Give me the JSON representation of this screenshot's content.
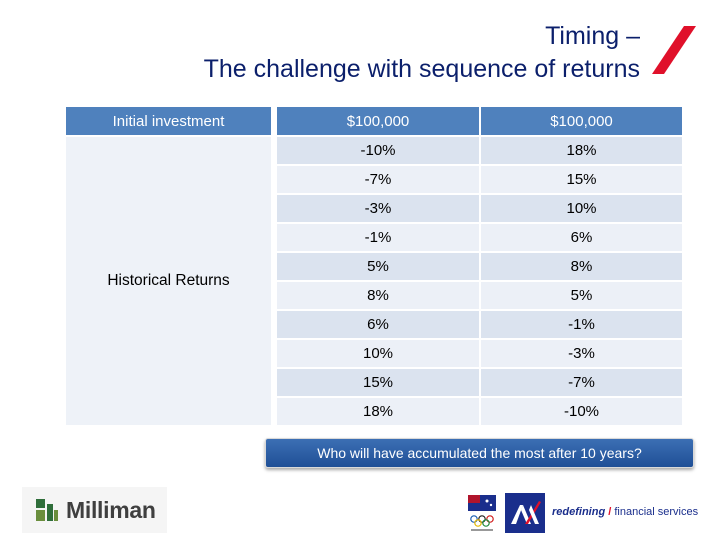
{
  "title": {
    "line1": "Timing –",
    "line2": "The challenge with sequence of returns"
  },
  "table": {
    "header_label": "Initial investment",
    "amounts": [
      "$100,000",
      "$100,000"
    ],
    "side_label": "Historical Returns",
    "rows": [
      [
        "-10%",
        "18%"
      ],
      [
        "-7%",
        "15%"
      ],
      [
        "-3%",
        "10%"
      ],
      [
        "-1%",
        "6%"
      ],
      [
        "5%",
        "8%"
      ],
      [
        "8%",
        "5%"
      ],
      [
        "6%",
        "-1%"
      ],
      [
        "10%",
        "-3%"
      ],
      [
        "15%",
        "-7%"
      ],
      [
        "18%",
        "-10%"
      ]
    ]
  },
  "callout": "Who will have accumulated the most after 10 years?",
  "footer": {
    "brand": "Milliman",
    "tagline_bold": "redefining",
    "tagline_slash": "/",
    "tagline_rest": "financial services"
  },
  "colors": {
    "title": "#0b1f6b",
    "header_bg": "#4f81bd",
    "row_dark": "#dbe3ef",
    "row_light": "#ecf0f7",
    "accent_red": "#e0102a",
    "axa_blue": "#1a2e8c"
  }
}
